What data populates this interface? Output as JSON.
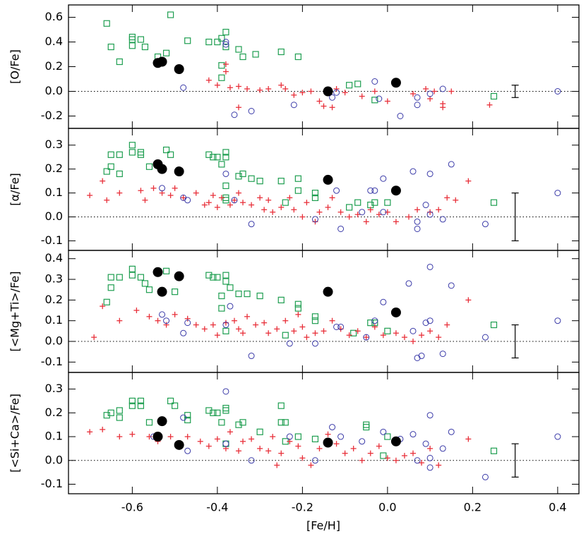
{
  "chart_data": [
    {
      "type": "scatter",
      "ylabel": "[O/Fe]",
      "xlim": [
        -0.75,
        0.45
      ],
      "ylim": [
        -0.3,
        0.7
      ],
      "yticks": [
        -0.2,
        {
          "value": 0,
          "label": "0.0"
        },
        0.2,
        0.4,
        0.6
      ],
      "hline": 0,
      "error_bar": {
        "x": 0.3,
        "y": 0,
        "err": 0.05
      },
      "series": [
        {
          "marker": "square",
          "color": "#1e9e50",
          "x": [
            -0.66,
            -0.65,
            -0.63,
            -0.6,
            -0.6,
            -0.6,
            -0.58,
            -0.57,
            -0.54,
            -0.52,
            -0.51,
            -0.47,
            -0.42,
            -0.4,
            -0.39,
            -0.38,
            -0.38,
            -0.39,
            -0.39,
            -0.35,
            -0.34,
            -0.31,
            -0.25,
            -0.21,
            -0.09,
            -0.07,
            -0.03,
            0.25
          ],
          "y": [
            0.55,
            0.36,
            0.24,
            0.44,
            0.42,
            0.37,
            0.42,
            0.36,
            0.28,
            0.31,
            0.62,
            0.41,
            0.4,
            0.4,
            0.43,
            0.48,
            0.36,
            0.21,
            0.11,
            0.34,
            0.28,
            0.3,
            0.32,
            0.28,
            0.05,
            0.06,
            -0.07,
            -0.04
          ]
        },
        {
          "marker": "plus",
          "color": "#e8303a",
          "x": [
            -0.42,
            -0.4,
            -0.38,
            -0.38,
            -0.37,
            -0.35,
            -0.33,
            -0.3,
            -0.28,
            -0.25,
            -0.24,
            -0.22,
            -0.2,
            -0.18,
            -0.16,
            -0.15,
            -0.13,
            -0.12,
            -0.1,
            -0.06,
            -0.03,
            0.0,
            0.06,
            0.09,
            0.1,
            0.11,
            0.13,
            0.13,
            0.15,
            0.24,
            -0.35
          ],
          "y": [
            0.09,
            0.05,
            0.22,
            0.16,
            0.03,
            0.04,
            0.02,
            0.01,
            0.02,
            0.05,
            0.02,
            -0.03,
            -0.01,
            0.0,
            -0.08,
            -0.12,
            -0.13,
            0.02,
            -0.01,
            -0.04,
            0.0,
            -0.08,
            -0.02,
            0.02,
            -0.06,
            0.0,
            -0.1,
            -0.13,
            0.0,
            -0.11,
            -0.13
          ]
        },
        {
          "marker": "circle",
          "color": "#3a3aa8",
          "x": [
            -0.48,
            -0.38,
            -0.38,
            -0.36,
            -0.32,
            -0.22,
            -0.13,
            -0.12,
            -0.03,
            -0.02,
            0.03,
            0.07,
            0.07,
            0.1,
            0.13,
            0.4
          ],
          "y": [
            0.03,
            0.4,
            0.38,
            -0.19,
            -0.16,
            -0.11,
            -0.05,
            -0.01,
            0.08,
            -0.06,
            -0.2,
            -0.11,
            -0.05,
            -0.02,
            0.02,
            0.0
          ]
        },
        {
          "marker": "dot",
          "color": "#000000",
          "x": [
            -0.54,
            -0.53,
            -0.49,
            -0.14,
            0.02
          ],
          "y": [
            0.23,
            0.24,
            0.18,
            0.0,
            0.07
          ]
        }
      ]
    },
    {
      "type": "scatter",
      "ylabel": "[α/Fe]",
      "xlim": [
        -0.75,
        0.45
      ],
      "ylim": [
        -0.14,
        0.37
      ],
      "yticks": [
        -0.1,
        {
          "value": 0,
          "label": "0.0"
        },
        0.1,
        0.2,
        0.3
      ],
      "hline": 0,
      "error_bar": {
        "x": 0.3,
        "y": 0,
        "err": 0.1
      },
      "series": [
        {
          "marker": "square",
          "color": "#1e9e50",
          "x": [
            -0.66,
            -0.65,
            -0.65,
            -0.63,
            -0.63,
            -0.6,
            -0.6,
            -0.58,
            -0.58,
            -0.56,
            -0.52,
            -0.51,
            -0.42,
            -0.41,
            -0.4,
            -0.38,
            -0.38,
            -0.39,
            -0.38,
            -0.35,
            -0.34,
            -0.32,
            -0.3,
            -0.25,
            -0.21,
            -0.21,
            -0.17,
            -0.17,
            -0.09,
            -0.07,
            -0.04,
            -0.03,
            0.0,
            0.25,
            -0.38,
            -0.38,
            -0.24
          ],
          "y": [
            0.19,
            0.26,
            0.21,
            0.18,
            0.26,
            0.3,
            0.27,
            0.27,
            0.26,
            0.21,
            0.28,
            0.26,
            0.26,
            0.25,
            0.25,
            0.27,
            0.25,
            0.22,
            0.13,
            0.17,
            0.18,
            0.16,
            0.15,
            0.15,
            0.16,
            0.11,
            0.1,
            0.08,
            0.04,
            0.06,
            0.05,
            0.06,
            0.06,
            0.06,
            0.08,
            0.07,
            0.06
          ]
        },
        {
          "marker": "plus",
          "color": "#e8303a",
          "x": [
            -0.7,
            -0.67,
            -0.66,
            -0.63,
            -0.58,
            -0.57,
            -0.55,
            -0.53,
            -0.51,
            -0.5,
            -0.48,
            -0.45,
            -0.43,
            -0.42,
            -0.41,
            -0.4,
            -0.39,
            -0.37,
            -0.36,
            -0.35,
            -0.34,
            -0.32,
            -0.3,
            -0.29,
            -0.28,
            -0.27,
            -0.25,
            -0.23,
            -0.22,
            -0.2,
            -0.19,
            -0.17,
            -0.16,
            -0.14,
            -0.13,
            -0.11,
            -0.09,
            -0.07,
            -0.05,
            -0.04,
            -0.02,
            0.0,
            0.02,
            0.05,
            0.07,
            0.1,
            0.12,
            0.14,
            0.16,
            0.19
          ],
          "y": [
            0.09,
            0.15,
            0.07,
            0.1,
            0.11,
            0.07,
            0.12,
            0.1,
            0.09,
            0.12,
            0.08,
            0.1,
            0.05,
            0.06,
            0.09,
            0.04,
            0.08,
            0.05,
            0.07,
            0.1,
            0.06,
            0.05,
            0.08,
            0.03,
            0.07,
            0.02,
            0.04,
            0.08,
            0.03,
            0.0,
            0.06,
            -0.02,
            0.02,
            0.04,
            0.08,
            0.02,
            0.0,
            0.01,
            -0.02,
            0.03,
            0.01,
            0.02,
            -0.02,
            0.0,
            0.03,
            0.02,
            0.03,
            0.08,
            0.07,
            0.15
          ]
        },
        {
          "marker": "circle",
          "color": "#3a3aa8",
          "x": [
            -0.53,
            -0.48,
            -0.47,
            -0.38,
            -0.36,
            -0.32,
            -0.17,
            -0.12,
            -0.11,
            -0.06,
            -0.04,
            -0.03,
            -0.01,
            0.06,
            0.07,
            0.07,
            0.09,
            0.1,
            0.1,
            0.13,
            0.15,
            0.23,
            0.4,
            -0.01
          ],
          "y": [
            0.12,
            0.08,
            0.07,
            0.18,
            0.07,
            -0.03,
            -0.01,
            0.11,
            -0.05,
            0.02,
            0.11,
            0.11,
            0.16,
            0.19,
            -0.05,
            -0.02,
            0.05,
            0.18,
            0.01,
            -0.01,
            0.22,
            -0.03,
            0.1,
            0.02
          ]
        },
        {
          "marker": "dot",
          "color": "#000000",
          "x": [
            -0.54,
            -0.53,
            -0.49,
            -0.14,
            0.02
          ],
          "y": [
            0.22,
            0.2,
            0.19,
            0.155,
            0.11
          ]
        }
      ]
    },
    {
      "type": "scatter",
      "ylabel": "[<Mg+Ti>/Fe]",
      "xlim": [
        -0.75,
        0.45
      ],
      "ylim": [
        -0.15,
        0.44
      ],
      "yticks": [
        -0.1,
        {
          "value": 0,
          "label": "0.0"
        },
        0.1,
        0.2,
        0.3,
        0.4
      ],
      "hline": 0,
      "error_bar": {
        "x": 0.3,
        "y": 0,
        "err": 0.08
      },
      "series": [
        {
          "marker": "square",
          "color": "#1e9e50",
          "x": [
            -0.66,
            -0.65,
            -0.65,
            -0.63,
            -0.6,
            -0.6,
            -0.58,
            -0.57,
            -0.56,
            -0.52,
            -0.5,
            -0.42,
            -0.41,
            -0.4,
            -0.38,
            -0.38,
            -0.37,
            -0.39,
            -0.39,
            -0.35,
            -0.33,
            -0.3,
            -0.25,
            -0.21,
            -0.21,
            -0.17,
            -0.17,
            -0.08,
            -0.04,
            -0.03,
            0.0,
            0.25,
            -0.38,
            -0.24
          ],
          "y": [
            0.19,
            0.31,
            0.26,
            0.31,
            0.35,
            0.32,
            0.31,
            0.28,
            0.25,
            0.34,
            0.24,
            0.32,
            0.31,
            0.31,
            0.32,
            0.29,
            0.26,
            0.22,
            0.16,
            0.23,
            0.23,
            0.22,
            0.2,
            0.18,
            0.16,
            0.12,
            0.1,
            0.04,
            0.09,
            0.09,
            0.05,
            0.08,
            0.05,
            0.03
          ]
        },
        {
          "marker": "plus",
          "color": "#e8303a",
          "x": [
            -0.69,
            -0.67,
            -0.63,
            -0.59,
            -0.56,
            -0.54,
            -0.52,
            -0.5,
            -0.47,
            -0.45,
            -0.43,
            -0.41,
            -0.4,
            -0.38,
            -0.36,
            -0.35,
            -0.33,
            -0.31,
            -0.29,
            -0.28,
            -0.26,
            -0.24,
            -0.22,
            -0.2,
            -0.19,
            -0.17,
            -0.15,
            -0.13,
            -0.11,
            -0.09,
            -0.07,
            -0.05,
            -0.03,
            -0.01,
            0.02,
            0.04,
            0.06,
            0.08,
            0.1,
            0.12,
            0.14,
            0.19,
            -0.21,
            -0.34
          ],
          "y": [
            0.02,
            0.17,
            0.1,
            0.15,
            0.12,
            0.1,
            0.08,
            0.13,
            0.11,
            0.08,
            0.06,
            0.08,
            0.03,
            0.09,
            0.1,
            0.06,
            0.12,
            0.08,
            0.09,
            0.04,
            0.06,
            0.1,
            0.05,
            0.07,
            0.02,
            0.04,
            0.05,
            0.1,
            0.06,
            0.03,
            0.05,
            0.02,
            0.07,
            0.03,
            0.04,
            0.02,
            0.0,
            0.03,
            0.05,
            0.02,
            0.08,
            0.2,
            0.13,
            0.04
          ]
        },
        {
          "marker": "circle",
          "color": "#3a3aa8",
          "x": [
            -0.53,
            -0.52,
            -0.48,
            -0.47,
            -0.38,
            -0.37,
            -0.32,
            -0.23,
            -0.17,
            -0.12,
            -0.11,
            -0.05,
            -0.03,
            -0.01,
            0.05,
            0.06,
            0.07,
            0.08,
            0.1,
            0.1,
            0.09,
            0.13,
            0.15,
            0.23,
            0.4
          ],
          "y": [
            0.13,
            0.1,
            0.04,
            0.09,
            0.08,
            0.17,
            -0.07,
            -0.01,
            -0.01,
            0.07,
            0.07,
            0.02,
            0.1,
            0.19,
            0.28,
            0.05,
            -0.08,
            -0.07,
            0.36,
            0.1,
            0.09,
            -0.06,
            0.27,
            0.02,
            0.1
          ]
        },
        {
          "marker": "dot",
          "color": "#000000",
          "x": [
            -0.54,
            -0.53,
            -0.49,
            -0.14,
            0.02
          ],
          "y": [
            0.335,
            0.24,
            0.315,
            0.24,
            0.14
          ]
        }
      ]
    },
    {
      "type": "scatter",
      "ylabel": "[<Si+Ca>/Fe]",
      "xlabel": "[Fe/H]",
      "xlim": [
        -0.75,
        0.45
      ],
      "ylim": [
        -0.14,
        0.37
      ],
      "xticks": [
        -0.6,
        -0.4,
        -0.2,
        {
          "value": 0,
          "label": "0.0"
        },
        0.2,
        0.4
      ],
      "yticks": [
        -0.1,
        {
          "value": 0,
          "label": "0.0"
        },
        0.1,
        0.2,
        0.3
      ],
      "hline": 0,
      "error_bar": {
        "x": 0.3,
        "y": 0,
        "err": 0.07
      },
      "series": [
        {
          "marker": "square",
          "color": "#1e9e50",
          "x": [
            -0.66,
            -0.65,
            -0.63,
            -0.63,
            -0.6,
            -0.6,
            -0.58,
            -0.58,
            -0.56,
            -0.51,
            -0.5,
            -0.47,
            -0.47,
            -0.42,
            -0.41,
            -0.4,
            -0.38,
            -0.38,
            -0.39,
            -0.35,
            -0.34,
            -0.3,
            -0.25,
            -0.25,
            -0.24,
            -0.21,
            -0.17,
            -0.05,
            -0.05,
            0.0,
            -0.01,
            0.25,
            -0.38,
            -0.24
          ],
          "y": [
            0.19,
            0.2,
            0.18,
            0.21,
            0.25,
            0.23,
            0.25,
            0.23,
            0.16,
            0.25,
            0.23,
            0.19,
            0.17,
            0.21,
            0.2,
            0.2,
            0.22,
            0.21,
            0.16,
            0.15,
            0.16,
            0.12,
            0.23,
            0.16,
            0.16,
            0.1,
            0.09,
            0.15,
            0.14,
            0.1,
            0.02,
            0.04,
            0.07,
            0.08
          ]
        },
        {
          "marker": "plus",
          "color": "#e8303a",
          "x": [
            -0.7,
            -0.67,
            -0.63,
            -0.6,
            -0.56,
            -0.54,
            -0.51,
            -0.47,
            -0.44,
            -0.42,
            -0.4,
            -0.38,
            -0.37,
            -0.35,
            -0.34,
            -0.32,
            -0.3,
            -0.28,
            -0.27,
            -0.25,
            -0.23,
            -0.21,
            -0.2,
            -0.18,
            -0.16,
            -0.14,
            -0.12,
            -0.1,
            -0.08,
            -0.06,
            -0.04,
            -0.02,
            0.0,
            0.02,
            0.04,
            0.06,
            0.08,
            0.1,
            0.12,
            0.19,
            -0.26
          ],
          "y": [
            0.12,
            0.13,
            0.1,
            0.11,
            0.1,
            0.08,
            0.1,
            0.1,
            0.08,
            0.06,
            0.09,
            0.05,
            0.12,
            0.04,
            0.08,
            0.09,
            0.05,
            0.04,
            0.1,
            0.03,
            0.08,
            0.06,
            0.01,
            -0.02,
            0.05,
            0.11,
            0.07,
            0.03,
            0.05,
            0.0,
            0.03,
            0.06,
            0.01,
            0.0,
            0.02,
            0.03,
            -0.01,
            0.05,
            -0.02,
            0.09,
            -0.02
          ]
        },
        {
          "marker": "circle",
          "color": "#3a3aa8",
          "x": [
            -0.55,
            -0.48,
            -0.47,
            -0.38,
            -0.38,
            -0.32,
            -0.23,
            -0.17,
            -0.13,
            -0.11,
            -0.06,
            -0.01,
            0.03,
            0.06,
            0.07,
            0.09,
            0.1,
            0.1,
            0.1,
            0.13,
            0.15,
            0.23,
            0.4
          ],
          "y": [
            0.1,
            0.18,
            0.04,
            0.29,
            0.07,
            0.0,
            0.1,
            0.0,
            0.14,
            0.1,
            0.08,
            0.12,
            0.09,
            0.11,
            0.0,
            0.07,
            0.19,
            0.01,
            -0.03,
            0.05,
            0.12,
            -0.07,
            0.1
          ]
        },
        {
          "marker": "dot",
          "color": "#000000",
          "x": [
            -0.54,
            -0.53,
            -0.49,
            -0.14,
            0.02
          ],
          "y": [
            0.1,
            0.165,
            0.065,
            0.075,
            0.08
          ]
        }
      ]
    }
  ]
}
